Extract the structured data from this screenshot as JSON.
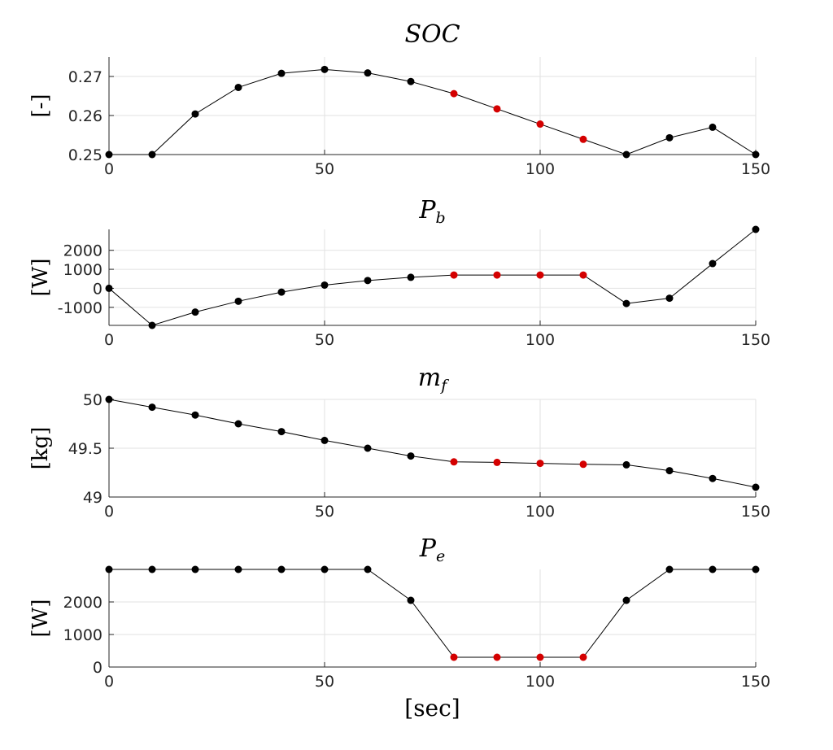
{
  "chart_data": [
    {
      "type": "line",
      "title": "SOC",
      "title_subscript": "",
      "ylabel": "[-]",
      "xlabel": "",
      "xlim": [
        0,
        150
      ],
      "ylim": [
        0.25,
        0.275
      ],
      "xticks": [
        0,
        50,
        100,
        150
      ],
      "xtick_labels": [
        "0",
        "50",
        "100",
        "150"
      ],
      "yticks": [
        0.25,
        0.26,
        0.27
      ],
      "ytick_labels": [
        "0.25",
        "0.26",
        "0.27"
      ],
      "grid": true,
      "x": [
        0,
        10,
        20,
        30,
        40,
        50,
        60,
        70,
        80,
        90,
        100,
        110,
        120,
        130,
        140,
        150
      ],
      "y": [
        0.25,
        0.25,
        0.2604,
        0.2672,
        0.2708,
        0.2718,
        0.2709,
        0.2687,
        0.2656,
        0.2617,
        0.2578,
        0.2539,
        0.25,
        0.2543,
        0.257,
        0.25
      ],
      "marker_colors": [
        "#000000",
        "#000000",
        "#000000",
        "#000000",
        "#000000",
        "#000000",
        "#000000",
        "#000000",
        "#d40000",
        "#d40000",
        "#d40000",
        "#d40000",
        "#000000",
        "#000000",
        "#000000",
        "#000000"
      ]
    },
    {
      "type": "line",
      "title": "P",
      "title_subscript": "b",
      "ylabel": "[W]",
      "xlabel": "",
      "xlim": [
        0,
        150
      ],
      "ylim": [
        -1950,
        3100
      ],
      "xticks": [
        0,
        50,
        100,
        150
      ],
      "xtick_labels": [
        "0",
        "50",
        "100",
        "150"
      ],
      "yticks": [
        -1000,
        0,
        1000,
        2000
      ],
      "ytick_labels": [
        "-1000",
        "0",
        "1000",
        "2000"
      ],
      "grid": true,
      "x": [
        0,
        10,
        20,
        30,
        40,
        50,
        60,
        70,
        80,
        90,
        100,
        110,
        120,
        130,
        140,
        150
      ],
      "y": [
        0,
        -1950,
        -1250,
        -680,
        -200,
        170,
        410,
        580,
        700,
        700,
        700,
        700,
        -800,
        -520,
        1300,
        3100
      ],
      "marker_colors": [
        "#000000",
        "#000000",
        "#000000",
        "#000000",
        "#000000",
        "#000000",
        "#000000",
        "#000000",
        "#d40000",
        "#d40000",
        "#d40000",
        "#d40000",
        "#000000",
        "#000000",
        "#000000",
        "#000000"
      ]
    },
    {
      "type": "line",
      "title": "m",
      "title_subscript": "f",
      "ylabel": "[kg]",
      "xlabel": "",
      "xlim": [
        0,
        150
      ],
      "ylim": [
        49,
        50
      ],
      "xticks": [
        0,
        50,
        100,
        150
      ],
      "xtick_labels": [
        "0",
        "50",
        "100",
        "150"
      ],
      "yticks": [
        49,
        49.5,
        50
      ],
      "ytick_labels": [
        "49",
        "49.5",
        "50"
      ],
      "grid": true,
      "x": [
        0,
        10,
        20,
        30,
        40,
        50,
        60,
        70,
        80,
        90,
        100,
        110,
        120,
        130,
        140,
        150
      ],
      "y": [
        50,
        49.92,
        49.84,
        49.75,
        49.67,
        49.58,
        49.5,
        49.42,
        49.36,
        49.355,
        49.345,
        49.335,
        49.33,
        49.27,
        49.19,
        49.1
      ],
      "marker_colors": [
        "#000000",
        "#000000",
        "#000000",
        "#000000",
        "#000000",
        "#000000",
        "#000000",
        "#000000",
        "#d40000",
        "#d40000",
        "#d40000",
        "#d40000",
        "#000000",
        "#000000",
        "#000000",
        "#000000"
      ]
    },
    {
      "type": "line",
      "title": "P",
      "title_subscript": "e",
      "ylabel": "[W]",
      "xlabel": "[sec]",
      "xlim": [
        0,
        150
      ],
      "ylim": [
        0,
        3000
      ],
      "xticks": [
        0,
        50,
        100,
        150
      ],
      "xtick_labels": [
        "0",
        "50",
        "100",
        "150"
      ],
      "yticks": [
        0,
        1000,
        2000
      ],
      "ytick_labels": [
        "0",
        "1000",
        "2000"
      ],
      "grid": true,
      "x": [
        0,
        10,
        20,
        30,
        40,
        50,
        60,
        70,
        80,
        90,
        100,
        110,
        120,
        130,
        140,
        150
      ],
      "y": [
        3000,
        3000,
        3000,
        3000,
        3000,
        3000,
        3000,
        2050,
        300,
        300,
        300,
        300,
        2050,
        3000,
        3000,
        3000
      ],
      "marker_colors": [
        "#000000",
        "#000000",
        "#000000",
        "#000000",
        "#000000",
        "#000000",
        "#000000",
        "#000000",
        "#d40000",
        "#d40000",
        "#d40000",
        "#d40000",
        "#000000",
        "#000000",
        "#000000",
        "#000000"
      ]
    }
  ]
}
